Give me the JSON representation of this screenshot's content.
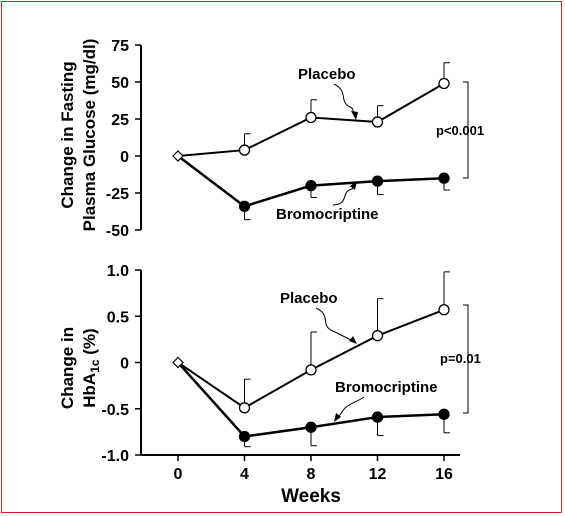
{
  "colors": {
    "frame": "#c8262c",
    "ink": "#000000"
  },
  "x_axis": {
    "label": "Weeks",
    "ticks": [
      "0",
      "4",
      "8",
      "12",
      "16"
    ]
  },
  "chart_data": [
    {
      "type": "line",
      "ylabel_lines": [
        "Change in Fasting",
        "Plasma Glucose (mg/dl)"
      ],
      "x": [
        0,
        4,
        8,
        12,
        16
      ],
      "xlim": [
        0,
        16
      ],
      "ylim": [
        -50,
        75
      ],
      "yticks": [
        75,
        50,
        25,
        0,
        -25,
        -50
      ],
      "ytick_labels": [
        "75",
        "50",
        "25",
        "0",
        "-25",
        "-50"
      ],
      "series": [
        {
          "name": "Placebo",
          "marker": "open-circle",
          "values": [
            0,
            4,
            26,
            23,
            49
          ],
          "error_upper": [
            0,
            11,
            12,
            11,
            14
          ]
        },
        {
          "name": "Bromocriptine",
          "marker": "filled-circle",
          "values": [
            0,
            -34,
            -20,
            -17,
            -15
          ],
          "error_lower": [
            0,
            9,
            8,
            9,
            8
          ]
        }
      ],
      "significance": "p<0.001"
    },
    {
      "type": "line",
      "ylabel_pre": "Change in",
      "ylabel_main": "HbA",
      "ylabel_sub": "1c",
      "ylabel_post": " (%)",
      "x": [
        0,
        4,
        8,
        12,
        16
      ],
      "xlim": [
        0,
        16
      ],
      "ylim": [
        -1.0,
        1.0
      ],
      "yticks": [
        1.0,
        0.5,
        0,
        -0.5,
        -1.0
      ],
      "ytick_labels": [
        "1.0",
        "0.5",
        "0",
        "-0.5",
        "-1.0"
      ],
      "series": [
        {
          "name": "Placebo",
          "marker": "open-circle",
          "values": [
            0,
            -0.49,
            -0.08,
            0.29,
            0.57
          ],
          "error_upper": [
            0,
            0.31,
            0.41,
            0.4,
            0.41
          ]
        },
        {
          "name": "Bromocriptine",
          "marker": "filled-circle",
          "values": [
            0,
            -0.8,
            -0.7,
            -0.59,
            -0.56
          ],
          "error_lower": [
            0,
            0.11,
            0.2,
            0.2,
            0.2
          ]
        }
      ],
      "significance": "p=0.01"
    }
  ]
}
